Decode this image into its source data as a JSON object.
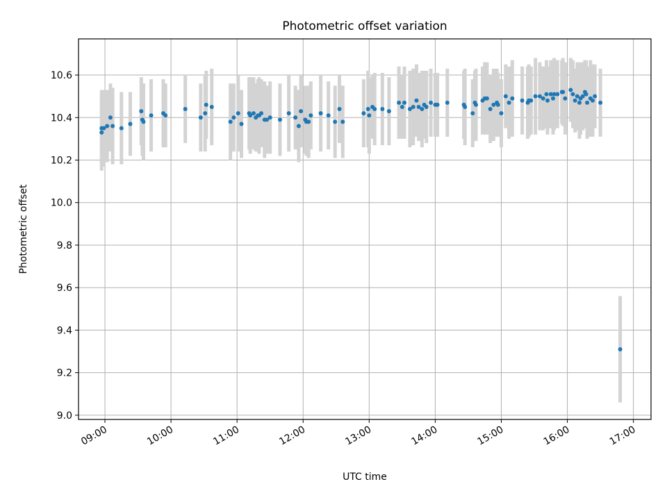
{
  "chart_data": {
    "type": "scatter",
    "title": "Photometric offset variation",
    "xlabel": "UTC time",
    "ylabel": "Photometric offset",
    "x_ticks": [
      "09:00",
      "10:00",
      "11:00",
      "12:00",
      "13:00",
      "14:00",
      "15:00",
      "16:00",
      "17:00"
    ],
    "y_ticks": [
      "9.0",
      "9.2",
      "9.4",
      "9.6",
      "9.8",
      "10.0",
      "10.2",
      "10.4",
      "10.6"
    ],
    "xlim": [
      "08:36",
      "17:16"
    ],
    "ylim": [
      8.98,
      10.77
    ],
    "grid": true,
    "point_color": "#1f77b4",
    "errorbar_color": "#d3d3d3",
    "series": [
      {
        "x": [
          "08:57",
          "08:57",
          "08:59",
          "09:02",
          "09:05",
          "09:07",
          "09:15",
          "09:23",
          "09:33",
          "09:34",
          "09:35",
          "09:42",
          "09:53",
          "09:55",
          "10:13",
          "10:27",
          "10:31",
          "10:32",
          "10:37",
          "10:54",
          "10:57",
          "11:01",
          "11:04",
          "11:11",
          "11:12",
          "11:15",
          "11:17",
          "11:19",
          "11:20",
          "11:22",
          "11:25",
          "11:27",
          "11:30",
          "11:39",
          "11:47",
          "11:53",
          "11:56",
          "11:58",
          "12:02",
          "12:03",
          "12:05",
          "12:07",
          "12:16",
          "12:23",
          "12:29",
          "12:33",
          "12:36",
          "12:55",
          "12:59",
          "13:00",
          "13:03",
          "13:05",
          "13:12",
          "13:18",
          "13:27",
          "13:30",
          "13:32",
          "13:37",
          "13:40",
          "13:43",
          "13:45",
          "13:48",
          "13:50",
          "13:52",
          "13:56",
          "14:00",
          "14:02",
          "14:11",
          "14:26",
          "14:27",
          "14:34",
          "14:36",
          "14:37",
          "14:43",
          "14:45",
          "14:47",
          "14:50",
          "14:53",
          "14:56",
          "14:57",
          "15:00",
          "15:04",
          "15:07",
          "15:10",
          "15:19",
          "15:24",
          "15:25",
          "15:27",
          "15:31",
          "15:35",
          "15:38",
          "15:41",
          "15:42",
          "15:45",
          "15:47",
          "15:48",
          "15:51",
          "15:55",
          "15:56",
          "15:58",
          "16:03",
          "16:05",
          "16:07",
          "16:09",
          "16:11",
          "16:12",
          "16:14",
          "16:16",
          "16:17",
          "16:18",
          "16:21",
          "16:23",
          "16:25",
          "16:30",
          "16:48"
        ],
        "y": [
          10.33,
          10.35,
          10.35,
          10.36,
          10.4,
          10.36,
          10.35,
          10.37,
          10.43,
          10.39,
          10.38,
          10.41,
          10.42,
          10.41,
          10.44,
          10.4,
          10.42,
          10.46,
          10.45,
          10.38,
          10.4,
          10.42,
          10.37,
          10.42,
          10.41,
          10.42,
          10.4,
          10.41,
          10.41,
          10.42,
          10.39,
          10.39,
          10.4,
          10.39,
          10.42,
          10.4,
          10.36,
          10.43,
          10.39,
          10.38,
          10.38,
          10.41,
          10.42,
          10.41,
          10.38,
          10.44,
          10.38,
          10.42,
          10.44,
          10.41,
          10.45,
          10.44,
          10.44,
          10.43,
          10.47,
          10.45,
          10.47,
          10.44,
          10.45,
          10.48,
          10.45,
          10.44,
          10.46,
          10.45,
          10.47,
          10.46,
          10.46,
          10.47,
          10.46,
          10.45,
          10.42,
          10.47,
          10.46,
          10.48,
          10.49,
          10.49,
          10.44,
          10.46,
          10.47,
          10.46,
          10.42,
          10.5,
          10.47,
          10.49,
          10.48,
          10.47,
          10.48,
          10.48,
          10.5,
          10.5,
          10.49,
          10.51,
          10.48,
          10.51,
          10.49,
          10.51,
          10.51,
          10.52,
          10.52,
          10.49,
          10.53,
          10.51,
          10.48,
          10.5,
          10.47,
          10.49,
          10.5,
          10.52,
          10.51,
          10.47,
          10.49,
          10.48,
          10.5,
          10.47,
          9.31
        ],
        "yerr": [
          0.18,
          0.18,
          0.18,
          0.17,
          0.16,
          0.18,
          0.17,
          0.15,
          0.16,
          0.17,
          0.18,
          0.17,
          0.16,
          0.15,
          0.16,
          0.16,
          0.18,
          0.16,
          0.18,
          0.18,
          0.16,
          0.18,
          0.16,
          0.17,
          0.18,
          0.17,
          0.16,
          0.17,
          0.18,
          0.16,
          0.18,
          0.16,
          0.17,
          0.17,
          0.18,
          0.15,
          0.17,
          0.17,
          0.16,
          0.16,
          0.17,
          0.16,
          0.18,
          0.16,
          0.17,
          0.16,
          0.17,
          0.16,
          0.18,
          0.18,
          0.15,
          0.17,
          0.17,
          0.16,
          0.17,
          0.15,
          0.17,
          0.18,
          0.18,
          0.17,
          0.16,
          0.18,
          0.16,
          0.17,
          0.16,
          0.15,
          0.15,
          0.16,
          0.16,
          0.18,
          0.16,
          0.15,
          0.17,
          0.16,
          0.17,
          0.17,
          0.16,
          0.17,
          0.16,
          0.15,
          0.16,
          0.15,
          0.17,
          0.18,
          0.16,
          0.17,
          0.17,
          0.16,
          0.18,
          0.16,
          0.15,
          0.16,
          0.16,
          0.16,
          0.17,
          0.17,
          0.16,
          0.15,
          0.16,
          0.17,
          0.15,
          0.16,
          0.15,
          0.16,
          0.17,
          0.17,
          0.16,
          0.15,
          0.16,
          0.17,
          0.18,
          0.17,
          0.15,
          0.16,
          0.25
        ]
      }
    ]
  }
}
